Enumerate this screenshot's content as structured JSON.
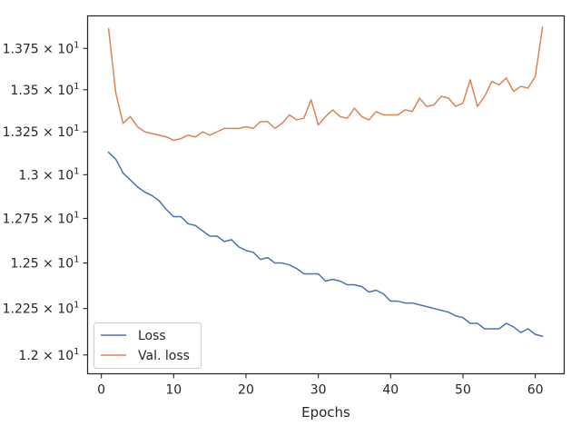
{
  "chart_data": {
    "type": "line",
    "title": "",
    "xlabel": "Epochs",
    "ylabel": "",
    "yscale": "log",
    "xlim": [
      -1.9,
      64.0
    ],
    "ylim": [
      11.9,
      13.95
    ],
    "x_ticks": [
      0,
      10,
      20,
      30,
      40,
      50,
      60
    ],
    "x_tick_labels": [
      "0",
      "10",
      "20",
      "30",
      "40",
      "50",
      "60"
    ],
    "y_ticks": [
      12.0,
      12.25,
      12.5,
      12.75,
      13.0,
      13.25,
      13.5,
      13.75
    ],
    "y_tick_labels": [
      "1.2 × 10",
      "1.225 × 10",
      "1.25 × 10",
      "1.275 × 10",
      "1.3 × 10",
      "1.325 × 10",
      "1.35 × 10",
      "1.375 × 10"
    ],
    "y_tick_exponent": "1",
    "grid": false,
    "legend_position": "lower-left",
    "x": [
      1,
      2,
      3,
      4,
      5,
      6,
      7,
      8,
      9,
      10,
      11,
      12,
      13,
      14,
      15,
      16,
      17,
      18,
      19,
      20,
      21,
      22,
      23,
      24,
      25,
      26,
      27,
      28,
      29,
      30,
      31,
      32,
      33,
      34,
      35,
      36,
      37,
      38,
      39,
      40,
      41,
      42,
      43,
      44,
      45,
      46,
      47,
      48,
      49,
      50,
      51,
      52,
      53,
      54,
      55,
      56,
      57,
      58,
      59,
      60,
      61
    ],
    "series": [
      {
        "name": "Loss",
        "color": "#4c72b0",
        "values": [
          13.13,
          13.09,
          13.01,
          12.97,
          12.93,
          12.9,
          12.88,
          12.85,
          12.8,
          12.76,
          12.76,
          12.72,
          12.71,
          12.68,
          12.65,
          12.65,
          12.62,
          12.63,
          12.59,
          12.57,
          12.56,
          12.52,
          12.53,
          12.5,
          12.5,
          12.49,
          12.47,
          12.44,
          12.44,
          12.44,
          12.4,
          12.41,
          12.4,
          12.38,
          12.38,
          12.37,
          12.34,
          12.35,
          12.33,
          12.29,
          12.29,
          12.28,
          12.28,
          12.27,
          12.26,
          12.25,
          12.24,
          12.23,
          12.21,
          12.2,
          12.17,
          12.17,
          12.14,
          12.14,
          12.14,
          12.17,
          12.15,
          12.12,
          12.14,
          12.11,
          12.1
        ]
      },
      {
        "name": "Val. loss",
        "color": "#dd8452",
        "values": [
          13.87,
          13.48,
          13.3,
          13.34,
          13.28,
          13.25,
          13.24,
          13.23,
          13.22,
          13.2,
          13.21,
          13.23,
          13.22,
          13.25,
          13.23,
          13.25,
          13.27,
          13.27,
          13.27,
          13.28,
          13.27,
          13.31,
          13.31,
          13.27,
          13.3,
          13.35,
          13.32,
          13.33,
          13.44,
          13.29,
          13.34,
          13.38,
          13.34,
          13.33,
          13.39,
          13.34,
          13.32,
          13.37,
          13.35,
          13.35,
          13.35,
          13.38,
          13.37,
          13.45,
          13.4,
          13.41,
          13.46,
          13.45,
          13.4,
          13.42,
          13.56,
          13.4,
          13.46,
          13.55,
          13.53,
          13.57,
          13.49,
          13.52,
          13.51,
          13.58,
          13.88
        ]
      }
    ]
  }
}
